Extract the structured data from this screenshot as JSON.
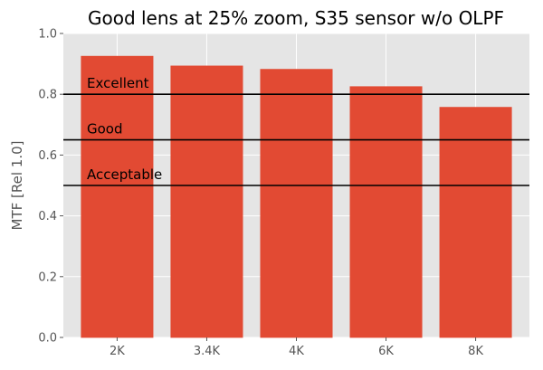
{
  "chart_data": {
    "type": "bar",
    "title": "Good lens at 25% zoom, S35 sensor w/o OLPF",
    "xlabel": "",
    "ylabel": "MTF [Rel 1.0]",
    "ylim": [
      0,
      1.0
    ],
    "yticks": [
      "0.0",
      "0.2",
      "0.4",
      "0.6",
      "0.8",
      "1.0"
    ],
    "categories": [
      "2K",
      "3.4K",
      "4K",
      "6K",
      "8K"
    ],
    "values": [
      0.925,
      0.893,
      0.882,
      0.825,
      0.757
    ],
    "reference_lines": [
      {
        "label": "Excellent",
        "value": 0.8
      },
      {
        "label": "Good",
        "value": 0.65
      },
      {
        "label": "Acceptable",
        "value": 0.5
      }
    ],
    "grid": true,
    "colors": {
      "bar_fill": "#E24A33",
      "bar_edge": "#E24A33",
      "plot_background": "#E5E5E5",
      "grid": "#FFFFFF",
      "reference_line": "#000000"
    }
  }
}
